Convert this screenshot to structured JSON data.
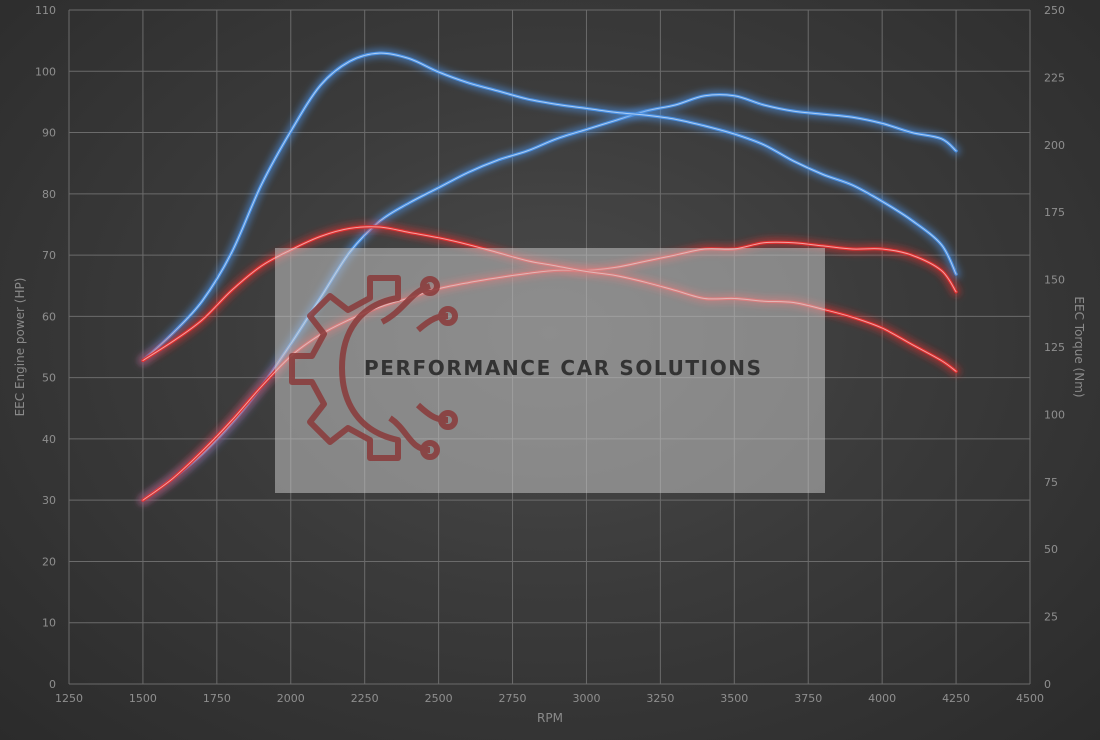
{
  "chart_data": {
    "type": "line",
    "title": "",
    "xlabel": "RPM",
    "ylabel": "EEC Engine power (HP)",
    "y2label": "EEC Torque (Nm)",
    "xlim": [
      1250,
      4500
    ],
    "ylim": [
      0,
      110
    ],
    "y2lim": [
      0,
      250
    ],
    "xticks": [
      1250,
      1500,
      1750,
      2000,
      2250,
      2500,
      2750,
      3000,
      3250,
      3500,
      3750,
      4000,
      4250,
      4500
    ],
    "yticks": [
      0,
      10,
      20,
      30,
      40,
      50,
      60,
      70,
      80,
      90,
      100,
      110
    ],
    "y2ticks": [
      0,
      25,
      50,
      75,
      100,
      125,
      150,
      175,
      200,
      225,
      250
    ],
    "grid": true,
    "series": [
      {
        "axis": "left",
        "color": "#4a90e2",
        "x": [
          1500,
          1600,
          1700,
          1800,
          1900,
          2000,
          2100,
          2200,
          2300,
          2400,
          2500,
          2600,
          2700,
          2800,
          2900,
          3000,
          3100,
          3200,
          3300,
          3400,
          3500,
          3600,
          3700,
          3800,
          3900,
          4000,
          4100,
          4200,
          4250
        ],
        "y": [
          30,
          33.5,
          37.5,
          42.5,
          48.5,
          55.5,
          63,
          70.5,
          75.5,
          78.5,
          81,
          83.5,
          85.5,
          87,
          89,
          90.5,
          92,
          93.5,
          94.5,
          96,
          96,
          94.5,
          93.5,
          93,
          92.5,
          91.5,
          90,
          89,
          87
        ]
      },
      {
        "axis": "right",
        "color": "#4a90e2",
        "x": [
          1500,
          1600,
          1700,
          1800,
          1900,
          2000,
          2100,
          2200,
          2300,
          2400,
          2500,
          2600,
          2700,
          2800,
          2900,
          3000,
          3100,
          3200,
          3300,
          3400,
          3500,
          3600,
          3700,
          3800,
          3900,
          4000,
          4100,
          4200,
          4250
        ],
        "y": [
          120,
          130,
          142,
          160,
          185,
          205,
          222,
          231,
          234,
          232,
          227,
          223,
          220,
          217,
          215,
          213.5,
          212,
          211,
          209.5,
          207,
          204,
          200,
          194,
          189,
          185,
          179,
          172,
          163,
          152
        ]
      },
      {
        "axis": "left",
        "color": "#e03030",
        "x": [
          1500,
          1600,
          1700,
          1800,
          1900,
          2000,
          2100,
          2200,
          2300,
          2400,
          2500,
          2600,
          2700,
          2800,
          2900,
          3000,
          3100,
          3200,
          3300,
          3400,
          3500,
          3600,
          3700,
          3800,
          3900,
          4000,
          4100,
          4200,
          4250
        ],
        "y": [
          30,
          33.5,
          38,
          43,
          48.5,
          53.5,
          57,
          59.5,
          61.5,
          63,
          64.5,
          65.5,
          66.3,
          67,
          67.5,
          67.5,
          68,
          69,
          70,
          71,
          71,
          72,
          72,
          71.5,
          71,
          71,
          70,
          67.5,
          64
        ]
      },
      {
        "axis": "right",
        "color": "#e03030",
        "x": [
          1500,
          1600,
          1700,
          1800,
          1900,
          2000,
          2100,
          2200,
          2300,
          2400,
          2500,
          2600,
          2700,
          2800,
          2900,
          3000,
          3100,
          3200,
          3300,
          3400,
          3500,
          3600,
          3700,
          3800,
          3900,
          4000,
          4100,
          4200,
          4250
        ],
        "y": [
          120,
          127,
          135,
          146,
          155,
          161,
          166,
          169,
          169.5,
          167.5,
          165.5,
          163,
          160,
          157,
          155,
          153,
          151.5,
          149,
          146,
          143,
          143,
          142,
          141.5,
          139,
          136,
          132,
          126,
          120,
          116
        ]
      }
    ]
  },
  "watermark": {
    "text": "PERFORMANCE CAR SOLUTIONS",
    "logo": "gear-circuit-logo"
  }
}
